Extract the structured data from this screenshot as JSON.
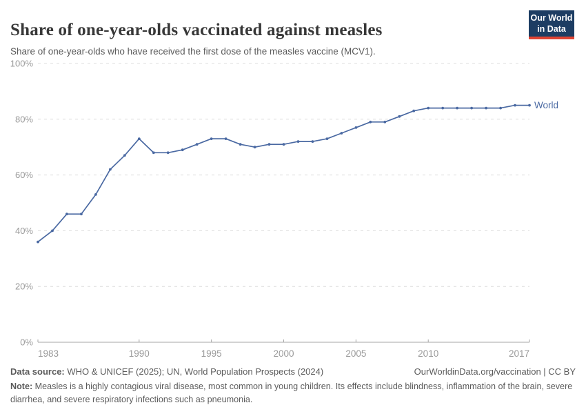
{
  "header": {
    "title": "Share of one-year-olds vaccinated against measles",
    "subtitle": "Share of one-year-olds who have received the first dose of the measles vaccine (MCV1).",
    "logo": {
      "line1": "Our World",
      "line2": "in Data"
    }
  },
  "chart_data": {
    "type": "line",
    "title": "Share of one-year-olds vaccinated against measles",
    "xlabel": "",
    "ylabel": "",
    "xlim": [
      1983,
      2017
    ],
    "ylim": [
      0,
      100
    ],
    "x_ticks": [
      1983,
      1990,
      1995,
      2000,
      2005,
      2010,
      2017
    ],
    "y_ticks": [
      0,
      20,
      40,
      60,
      80,
      100
    ],
    "y_tick_suffix": "%",
    "grid": "horizontal-dashed",
    "legend_position": "end-of-line-label",
    "series": [
      {
        "name": "World",
        "color": "#4a69a2",
        "x": [
          1983,
          1984,
          1985,
          1986,
          1987,
          1988,
          1989,
          1990,
          1991,
          1992,
          1993,
          1994,
          1995,
          1996,
          1997,
          1998,
          1999,
          2000,
          2001,
          2002,
          2003,
          2004,
          2005,
          2006,
          2007,
          2008,
          2009,
          2010,
          2011,
          2012,
          2013,
          2014,
          2015,
          2016,
          2017
        ],
        "values": [
          36,
          40,
          46,
          46,
          53,
          62,
          67,
          73,
          68,
          68,
          69,
          71,
          73,
          73,
          71,
          70,
          71,
          71,
          72,
          72,
          73,
          75,
          77,
          79,
          79,
          81,
          83,
          84,
          84,
          84,
          84,
          84,
          84,
          85,
          85
        ]
      }
    ]
  },
  "colors": {
    "title": "#373737",
    "subtitle": "#5b5b5b",
    "footer": "#5b5b5b",
    "grid": "#dcdcdc",
    "axis": "#a5a5a5",
    "tick_label": "#9a9a9a",
    "logo_bg": "#1d3d63",
    "logo_bar": "#e04433"
  },
  "footer": {
    "datasource_label": "Data source:",
    "datasource_text": " WHO & UNICEF (2025); UN, World Population Prospects (2024)",
    "rights": "OurWorldinData.org/vaccination | CC BY",
    "note_label": "Note:",
    "note_text": " Measles is a highly contagious viral disease, most common in young children. Its effects include blindness, inflammation of the brain, severe diarrhea, and severe respiratory infections such as pneumonia."
  }
}
